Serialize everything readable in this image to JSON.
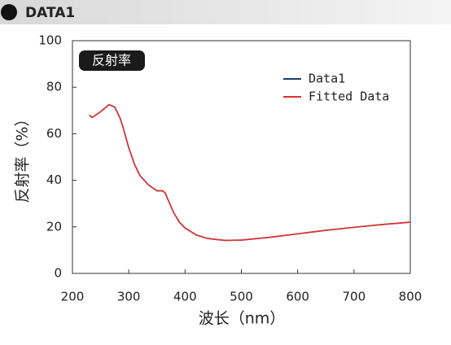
{
  "header": {
    "title": "DATA1"
  },
  "chart_data": {
    "type": "line",
    "annotation": "反射率",
    "xlabel": "波长（nm）",
    "ylabel": "反射率（%）",
    "x": [
      230,
      235,
      250,
      265,
      275,
      285,
      292,
      300,
      310,
      320,
      335,
      350,
      360,
      365,
      370,
      380,
      390,
      400,
      420,
      440,
      470,
      500,
      550,
      600,
      650,
      700,
      750,
      800
    ],
    "series": [
      {
        "name": "Data1",
        "color": "#1f3b73",
        "values": [
          68,
          67,
          69.5,
          72.5,
          71.5,
          66.5,
          61,
          54,
          47,
          42,
          38,
          35.5,
          35.5,
          34.5,
          31.5,
          26,
          22,
          19.5,
          16.5,
          15,
          14.2,
          14.3,
          15.5,
          17,
          18.5,
          19.8,
          21,
          22
        ]
      },
      {
        "name": "Fitted Data",
        "color": "#e03030",
        "values": [
          68,
          67,
          69.5,
          72.5,
          71.5,
          66.5,
          61,
          54,
          47,
          42,
          38,
          35.5,
          35.5,
          34.5,
          31.5,
          26,
          22,
          19.5,
          16.5,
          15,
          14.2,
          14.3,
          15.5,
          17,
          18.5,
          19.8,
          21,
          22
        ]
      }
    ],
    "xlim": [
      200,
      800
    ],
    "xticks": [
      200,
      300,
      400,
      500,
      600,
      700,
      800
    ],
    "ylim": [
      0,
      100
    ],
    "yticks": [
      0,
      20,
      40,
      60,
      80,
      100
    ],
    "legend": "upper right"
  }
}
